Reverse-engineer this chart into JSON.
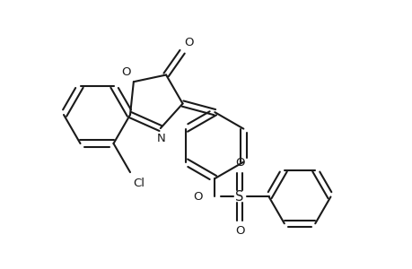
{
  "background_color": "#ffffff",
  "line_color": "#1a1a1a",
  "line_width": 1.5,
  "font_size": 9.5,
  "fig_width": 4.6,
  "fig_height": 3.0,
  "dpi": 100,
  "xlim": [
    0,
    4.6
  ],
  "ylim": [
    0,
    3.0
  ]
}
